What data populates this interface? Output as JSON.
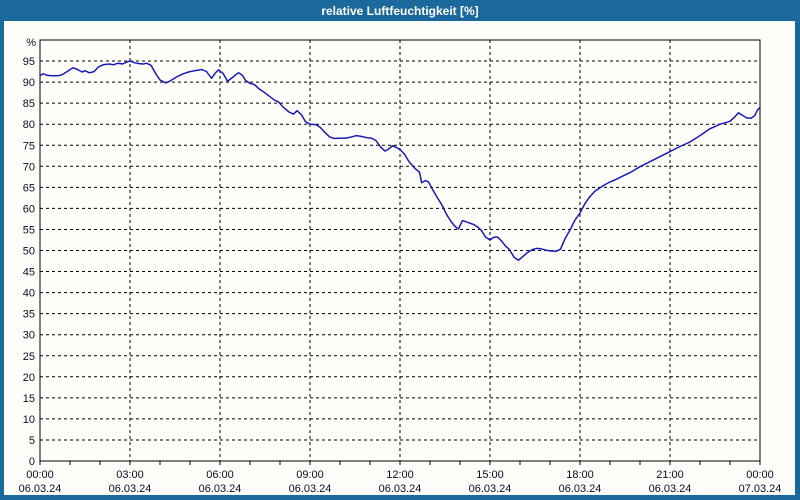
{
  "window": {
    "title": "relative Luftfeuchtigkeit [%]"
  },
  "colors": {
    "titlebar_bg": "#1b699c",
    "frame": "#1b699c",
    "plot_bg": "#fffefa",
    "grid": "#000000",
    "axis": "#000000",
    "label": "#0b0b28",
    "line": "#1a1ab8"
  },
  "chart_data": {
    "type": "line",
    "title": "relative Luftfeuchtigkeit [%]",
    "ylabel": "%",
    "y_unit": "%",
    "ylim": [
      0,
      100
    ],
    "xlim_hours": [
      0,
      24
    ],
    "grid": "dashed",
    "legend": "none",
    "y_ticks": [
      0,
      5,
      10,
      15,
      20,
      25,
      30,
      35,
      40,
      45,
      50,
      55,
      60,
      65,
      70,
      75,
      80,
      85,
      90,
      95
    ],
    "x_major_ticks": [
      {
        "hour": 0,
        "time": "00:00",
        "date": "06.03.24"
      },
      {
        "hour": 3,
        "time": "03:00",
        "date": "06.03.24"
      },
      {
        "hour": 6,
        "time": "06:00",
        "date": "06.03.24"
      },
      {
        "hour": 9,
        "time": "09:00",
        "date": "06.03.24"
      },
      {
        "hour": 12,
        "time": "12:00",
        "date": "06.03.24"
      },
      {
        "hour": 15,
        "time": "15:00",
        "date": "06.03.24"
      },
      {
        "hour": 18,
        "time": "18:00",
        "date": "06.03.24"
      },
      {
        "hour": 21,
        "time": "21:00",
        "date": "06.03.24"
      },
      {
        "hour": 24,
        "time": "00:00",
        "date": "07.03.24"
      }
    ],
    "x_minor_tick_every_hours": 1,
    "series": [
      {
        "name": "relative Luftfeuchtigkeit",
        "color": "#1a1ab8",
        "points": [
          [
            0.0,
            91.5
          ],
          [
            0.1,
            92.0
          ],
          [
            0.25,
            91.6
          ],
          [
            0.4,
            91.5
          ],
          [
            0.6,
            91.5
          ],
          [
            0.75,
            91.8
          ],
          [
            0.9,
            92.5
          ],
          [
            1.1,
            93.4
          ],
          [
            1.25,
            93.0
          ],
          [
            1.4,
            92.4
          ],
          [
            1.5,
            92.7
          ],
          [
            1.65,
            92.2
          ],
          [
            1.8,
            92.5
          ],
          [
            1.95,
            93.6
          ],
          [
            2.1,
            94.1
          ],
          [
            2.3,
            94.3
          ],
          [
            2.45,
            94.1
          ],
          [
            2.6,
            94.5
          ],
          [
            2.75,
            94.3
          ],
          [
            2.9,
            94.8
          ],
          [
            3.0,
            95.0
          ],
          [
            3.15,
            94.6
          ],
          [
            3.3,
            94.4
          ],
          [
            3.45,
            94.3
          ],
          [
            3.55,
            94.5
          ],
          [
            3.7,
            94.0
          ],
          [
            3.85,
            92.1
          ],
          [
            4.0,
            90.5
          ],
          [
            4.2,
            89.8
          ],
          [
            4.35,
            90.3
          ],
          [
            4.55,
            91.2
          ],
          [
            4.75,
            91.9
          ],
          [
            4.95,
            92.4
          ],
          [
            5.15,
            92.7
          ],
          [
            5.4,
            93.0
          ],
          [
            5.55,
            92.5
          ],
          [
            5.72,
            90.9
          ],
          [
            5.85,
            92.2
          ],
          [
            5.95,
            92.9
          ],
          [
            6.1,
            92.1
          ],
          [
            6.25,
            90.2
          ],
          [
            6.4,
            91.0
          ],
          [
            6.55,
            91.9
          ],
          [
            6.62,
            92.2
          ],
          [
            6.75,
            91.6
          ],
          [
            6.85,
            90.4
          ],
          [
            7.0,
            89.7
          ],
          [
            7.15,
            89.4
          ],
          [
            7.3,
            88.4
          ],
          [
            7.45,
            87.7
          ],
          [
            7.6,
            86.9
          ],
          [
            7.8,
            85.8
          ],
          [
            7.95,
            85.3
          ],
          [
            8.1,
            84.1
          ],
          [
            8.3,
            82.9
          ],
          [
            8.45,
            82.4
          ],
          [
            8.57,
            83.2
          ],
          [
            8.72,
            82.2
          ],
          [
            8.85,
            80.6
          ],
          [
            9.0,
            80.0
          ],
          [
            9.2,
            79.9
          ],
          [
            9.35,
            79.2
          ],
          [
            9.5,
            78.0
          ],
          [
            9.65,
            77.0
          ],
          [
            9.8,
            76.6
          ],
          [
            10.0,
            76.7
          ],
          [
            10.2,
            76.7
          ],
          [
            10.4,
            77.0
          ],
          [
            10.55,
            77.3
          ],
          [
            10.7,
            77.1
          ],
          [
            10.9,
            76.8
          ],
          [
            11.05,
            76.7
          ],
          [
            11.2,
            76.1
          ],
          [
            11.35,
            74.6
          ],
          [
            11.5,
            73.6
          ],
          [
            11.62,
            74.1
          ],
          [
            11.75,
            74.9
          ],
          [
            11.9,
            74.4
          ],
          [
            12.0,
            74.0
          ],
          [
            12.15,
            72.9
          ],
          [
            12.3,
            71.1
          ],
          [
            12.5,
            69.5
          ],
          [
            12.65,
            68.6
          ],
          [
            12.72,
            66.1
          ],
          [
            12.85,
            66.6
          ],
          [
            12.95,
            66.3
          ],
          [
            13.1,
            64.3
          ],
          [
            13.25,
            62.5
          ],
          [
            13.4,
            60.8
          ],
          [
            13.55,
            58.6
          ],
          [
            13.7,
            56.9
          ],
          [
            13.85,
            55.6
          ],
          [
            13.95,
            55.1
          ],
          [
            14.08,
            57.1
          ],
          [
            14.25,
            56.7
          ],
          [
            14.45,
            56.2
          ],
          [
            14.6,
            55.5
          ],
          [
            14.72,
            54.7
          ],
          [
            14.85,
            53.2
          ],
          [
            15.0,
            52.5
          ],
          [
            15.12,
            53.1
          ],
          [
            15.25,
            53.2
          ],
          [
            15.38,
            52.3
          ],
          [
            15.5,
            51.2
          ],
          [
            15.65,
            50.2
          ],
          [
            15.8,
            48.4
          ],
          [
            15.95,
            47.7
          ],
          [
            16.1,
            48.6
          ],
          [
            16.25,
            49.5
          ],
          [
            16.4,
            50.2
          ],
          [
            16.55,
            50.5
          ],
          [
            16.7,
            50.4
          ],
          [
            16.85,
            50.1
          ],
          [
            17.0,
            49.9
          ],
          [
            17.2,
            49.8
          ],
          [
            17.35,
            50.3
          ],
          [
            17.5,
            52.8
          ],
          [
            17.67,
            54.9
          ],
          [
            17.83,
            57.2
          ],
          [
            18.0,
            58.9
          ],
          [
            18.17,
            61.2
          ],
          [
            18.33,
            62.8
          ],
          [
            18.5,
            64.1
          ],
          [
            18.67,
            64.9
          ],
          [
            18.85,
            65.7
          ],
          [
            19.0,
            66.3
          ],
          [
            19.2,
            66.9
          ],
          [
            19.35,
            67.4
          ],
          [
            19.67,
            68.5
          ],
          [
            20.0,
            69.9
          ],
          [
            20.33,
            71.1
          ],
          [
            20.67,
            72.3
          ],
          [
            21.0,
            73.5
          ],
          [
            21.33,
            74.7
          ],
          [
            21.67,
            75.8
          ],
          [
            22.0,
            77.3
          ],
          [
            22.33,
            78.9
          ],
          [
            22.67,
            80.0
          ],
          [
            23.0,
            80.7
          ],
          [
            23.17,
            81.8
          ],
          [
            23.28,
            82.7
          ],
          [
            23.42,
            82.1
          ],
          [
            23.55,
            81.5
          ],
          [
            23.7,
            81.4
          ],
          [
            23.82,
            82.0
          ],
          [
            23.92,
            83.4
          ],
          [
            24.0,
            84.0
          ]
        ]
      }
    ]
  }
}
